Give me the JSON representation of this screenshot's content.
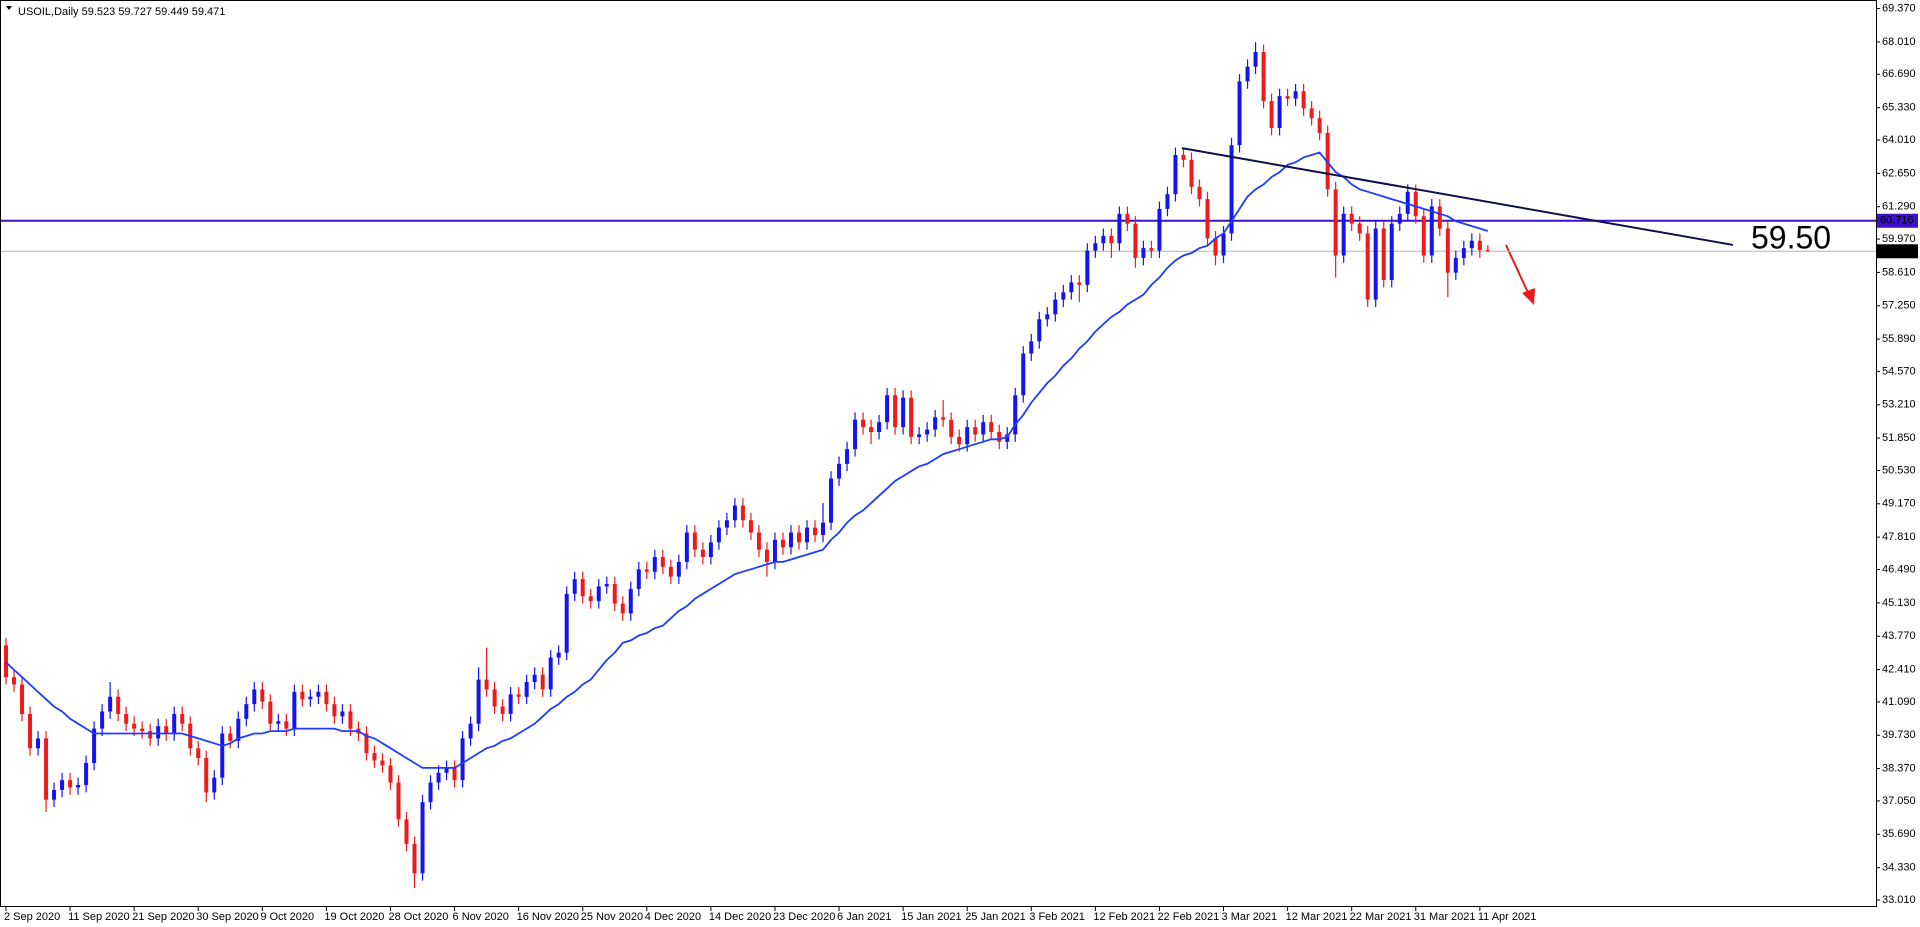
{
  "chart_data": {
    "type": "candlestick",
    "title": "USOIL,Daily",
    "categories": [
      "2 Sep 2020",
      null,
      null,
      null,
      null,
      null,
      null,
      null,
      "11 Sep 2020",
      null,
      null,
      null,
      null,
      null,
      null,
      null,
      "21 Sep 2020",
      null,
      null,
      null,
      null,
      null,
      null,
      null,
      "30 Sep 2020",
      null,
      null,
      null,
      null,
      null,
      null,
      null,
      "9 Oct 2020",
      null,
      null,
      null,
      null,
      null,
      null,
      null,
      "19 Oct 2020",
      null,
      null,
      null,
      null,
      null,
      null,
      null,
      "28 Oct 2020",
      null,
      null,
      null,
      null,
      null,
      null,
      null,
      "6 Nov 2020",
      null,
      null,
      null,
      null,
      null,
      null,
      null,
      "16 Nov 2020",
      null,
      null,
      null,
      null,
      null,
      null,
      null,
      "25 Nov 2020",
      null,
      null,
      null,
      null,
      null,
      null,
      null,
      "4 Dec 2020",
      null,
      null,
      null,
      null,
      null,
      null,
      null,
      "14 Dec 2020",
      null,
      null,
      null,
      null,
      null,
      null,
      null,
      "23 Dec 2020",
      null,
      null,
      null,
      null,
      null,
      null,
      null,
      "6 Jan 2021",
      null,
      null,
      null,
      null,
      null,
      null,
      null,
      "15 Jan 2021",
      null,
      null,
      null,
      null,
      null,
      null,
      null,
      "25 Jan 2021",
      null,
      null,
      null,
      null,
      null,
      null,
      null,
      "3 Feb 2021",
      null,
      null,
      null,
      null,
      null,
      null,
      null,
      "12 Feb 2021",
      null,
      null,
      null,
      null,
      null,
      null,
      null,
      "22 Feb 2021",
      null,
      null,
      null,
      null,
      null,
      null,
      null,
      "3 Mar 2021",
      null,
      null,
      null,
      null,
      null,
      null,
      null,
      "12 Mar 2021",
      null,
      null,
      null,
      null,
      null,
      null,
      null,
      "22 Mar 2021",
      null,
      null,
      null,
      null,
      null,
      null,
      null,
      "31 Mar 2021",
      null,
      null,
      null,
      null,
      null,
      null,
      null,
      "11 Apr 2021",
      null
    ],
    "open": [
      43.4,
      42.1,
      41.8,
      40.6,
      39.2,
      39.6,
      37.1,
      37.5,
      37.9,
      37.6,
      37.7,
      38.6,
      40.0,
      40.7,
      41.3,
      40.6,
      40.2,
      40.0,
      39.9,
      39.6,
      40.1,
      39.8,
      40.6,
      40.2,
      39.2,
      38.8,
      37.4,
      38.0,
      39.8,
      39.5,
      40.4,
      41.0,
      41.6,
      41.1,
      40.2,
      40.3,
      40.0,
      41.5,
      41.2,
      41.3,
      41.5,
      41.0,
      40.5,
      40.7,
      40.0,
      39.8,
      39.0,
      38.7,
      38.5,
      37.8,
      36.3,
      35.3,
      34.1,
      37.0,
      37.8,
      38.2,
      38.4,
      37.9,
      39.6,
      40.2,
      42.0,
      41.6,
      40.9,
      40.6,
      41.4,
      41.3,
      41.9,
      42.2,
      41.6,
      42.9,
      43.1,
      45.5,
      46.1,
      45.4,
      45.2,
      45.8,
      45.9,
      45.1,
      44.7,
      45.7,
      46.5,
      46.4,
      47.0,
      46.6,
      46.2,
      46.8,
      48.0,
      47.3,
      47.0,
      47.6,
      48.2,
      48.5,
      49.1,
      48.5,
      48.0,
      47.3,
      46.8,
      47.7,
      47.4,
      48.0,
      47.6,
      48.2,
      47.9,
      48.4,
      50.2,
      50.8,
      51.4,
      52.6,
      52.3,
      52.1,
      52.5,
      53.6,
      52.3,
      53.5,
      51.9,
      52.0,
      52.2,
      52.7,
      52.6,
      51.9,
      51.6,
      52.3,
      52.0,
      52.5,
      52.1,
      51.7,
      52.0,
      53.6,
      55.3,
      55.8,
      56.7,
      56.9,
      57.5,
      57.8,
      58.2,
      58.1,
      59.5,
      59.8,
      60.1,
      59.8,
      61.0,
      60.6,
      59.2,
      59.6,
      59.5,
      61.2,
      61.8,
      63.4,
      63.2,
      62.1,
      61.6,
      60.0,
      59.3,
      60.2,
      63.8,
      66.4,
      67.0,
      67.6,
      65.6,
      64.5,
      65.8,
      65.7,
      66.0,
      65.3,
      64.9,
      64.3,
      62.0,
      59.3,
      61.0,
      60.6,
      60.2,
      57.5,
      60.4,
      58.3,
      60.6,
      61.0,
      61.9,
      60.9,
      59.3,
      61.3,
      60.4,
      58.6,
      59.2,
      59.6,
      59.9,
      59.523
    ],
    "high": [
      43.7,
      42.4,
      42.1,
      40.9,
      39.9,
      39.9,
      37.8,
      38.2,
      38.2,
      38.0,
      38.9,
      40.3,
      41.0,
      41.9,
      41.6,
      40.9,
      40.5,
      40.3,
      40.2,
      40.4,
      40.4,
      40.9,
      40.9,
      40.5,
      39.5,
      39.1,
      38.3,
      40.1,
      40.1,
      40.7,
      41.3,
      41.9,
      41.9,
      41.4,
      40.6,
      40.6,
      41.8,
      41.8,
      41.6,
      41.8,
      41.8,
      41.3,
      41.0,
      41.0,
      40.3,
      40.1,
      39.3,
      39.0,
      38.8,
      38.1,
      36.6,
      35.6,
      37.3,
      38.1,
      38.5,
      38.7,
      38.7,
      39.9,
      40.5,
      42.5,
      43.3,
      41.9,
      41.2,
      41.7,
      41.7,
      42.2,
      42.5,
      42.5,
      43.2,
      43.4,
      45.8,
      46.4,
      46.4,
      45.7,
      46.1,
      46.2,
      46.2,
      45.4,
      46.0,
      46.8,
      46.8,
      47.3,
      47.3,
      46.9,
      47.1,
      48.3,
      48.3,
      47.6,
      47.9,
      48.5,
      48.8,
      49.4,
      49.4,
      48.8,
      48.3,
      47.6,
      48.0,
      48.0,
      48.3,
      48.3,
      48.5,
      48.5,
      49.2,
      50.5,
      51.1,
      51.7,
      52.9,
      52.9,
      52.6,
      52.8,
      53.9,
      53.9,
      53.8,
      53.8,
      52.3,
      52.5,
      53.0,
      53.4,
      52.9,
      52.2,
      52.6,
      52.6,
      52.8,
      52.8,
      52.4,
      52.3,
      53.9,
      55.6,
      56.1,
      57.0,
      57.2,
      57.8,
      58.1,
      58.5,
      58.5,
      59.8,
      60.1,
      60.4,
      60.4,
      61.3,
      61.3,
      60.9,
      59.9,
      59.9,
      61.5,
      62.1,
      63.7,
      63.7,
      63.5,
      62.4,
      61.9,
      60.3,
      60.5,
      64.1,
      66.7,
      67.3,
      68.0,
      67.9,
      65.9,
      66.1,
      66.1,
      66.3,
      66.3,
      65.6,
      65.2,
      64.6,
      62.3,
      61.3,
      61.3,
      60.9,
      60.5,
      60.7,
      60.7,
      60.9,
      61.3,
      62.2,
      62.2,
      61.2,
      61.6,
      61.6,
      60.7,
      59.5,
      59.9,
      60.2,
      60.2,
      59.727
    ],
    "low": [
      41.8,
      41.5,
      40.3,
      38.9,
      38.9,
      36.6,
      36.8,
      37.2,
      37.3,
      37.3,
      37.4,
      38.3,
      39.7,
      40.4,
      40.3,
      39.9,
      39.7,
      39.6,
      39.3,
      39.3,
      39.5,
      39.5,
      39.9,
      38.9,
      38.5,
      37.0,
      37.1,
      37.7,
      39.2,
      39.2,
      40.1,
      40.7,
      40.8,
      39.9,
      39.9,
      39.7,
      39.7,
      40.9,
      40.9,
      41.0,
      40.7,
      40.2,
      40.2,
      39.7,
      39.5,
      38.7,
      38.4,
      38.2,
      37.5,
      36.0,
      35.0,
      33.5,
      33.8,
      36.7,
      37.5,
      37.9,
      37.6,
      37.6,
      39.3,
      39.9,
      41.3,
      40.6,
      40.3,
      40.3,
      41.0,
      41.0,
      41.6,
      41.3,
      41.3,
      42.6,
      42.8,
      45.2,
      45.1,
      44.9,
      44.9,
      45.5,
      44.8,
      44.4,
      44.4,
      45.4,
      46.1,
      46.1,
      46.3,
      45.9,
      45.9,
      46.5,
      47.0,
      46.7,
      46.7,
      47.3,
      47.9,
      48.2,
      48.2,
      47.7,
      47.0,
      46.2,
      46.5,
      47.1,
      47.1,
      47.3,
      47.3,
      47.6,
      47.6,
      48.1,
      49.9,
      50.5,
      51.1,
      52.0,
      51.6,
      51.8,
      52.2,
      52.0,
      52.0,
      51.6,
      51.6,
      51.7,
      51.9,
      52.3,
      51.6,
      51.3,
      51.3,
      51.7,
      51.7,
      51.8,
      51.4,
      51.4,
      51.7,
      53.3,
      55.0,
      55.5,
      56.4,
      56.6,
      57.2,
      57.5,
      57.4,
      57.8,
      59.2,
      59.5,
      59.2,
      59.5,
      60.3,
      58.8,
      58.9,
      59.2,
      59.2,
      60.9,
      61.5,
      62.9,
      61.8,
      61.3,
      59.7,
      58.9,
      59.0,
      59.9,
      63.5,
      66.1,
      66.7,
      65.3,
      64.2,
      64.2,
      65.4,
      65.4,
      65.0,
      64.6,
      64.0,
      61.7,
      58.4,
      59.0,
      60.3,
      59.9,
      57.2,
      57.2,
      58.0,
      58.0,
      60.3,
      60.7,
      60.6,
      59.0,
      59.0,
      60.1,
      57.6,
      58.3,
      58.9,
      59.3,
      59.2,
      59.449
    ],
    "close": [
      42.1,
      41.8,
      40.6,
      39.2,
      39.6,
      37.1,
      37.5,
      37.9,
      37.6,
      37.7,
      38.6,
      40.0,
      40.7,
      41.3,
      40.6,
      40.2,
      40.0,
      39.9,
      39.6,
      40.1,
      39.8,
      40.6,
      40.2,
      39.2,
      38.8,
      37.4,
      38.0,
      39.8,
      39.5,
      40.4,
      41.0,
      41.6,
      41.1,
      40.2,
      40.3,
      40.0,
      41.5,
      41.2,
      41.3,
      41.5,
      41.0,
      40.5,
      40.7,
      40.0,
      39.8,
      39.0,
      38.7,
      38.5,
      37.8,
      36.3,
      35.3,
      34.1,
      37.0,
      37.8,
      38.2,
      38.4,
      37.9,
      39.6,
      40.2,
      42.0,
      41.6,
      40.9,
      40.6,
      41.4,
      41.3,
      41.9,
      42.2,
      41.6,
      42.9,
      43.1,
      45.5,
      46.1,
      45.4,
      45.2,
      45.8,
      45.9,
      45.1,
      44.7,
      45.7,
      46.5,
      46.4,
      47.0,
      46.6,
      46.2,
      46.8,
      48.0,
      47.3,
      47.0,
      47.6,
      48.2,
      48.5,
      49.1,
      48.5,
      48.0,
      47.3,
      46.8,
      47.7,
      47.4,
      48.0,
      47.6,
      48.2,
      47.9,
      48.4,
      50.2,
      50.8,
      51.4,
      52.6,
      52.3,
      52.1,
      52.5,
      53.6,
      52.3,
      53.5,
      51.9,
      52.0,
      52.2,
      52.7,
      52.6,
      51.9,
      51.6,
      52.3,
      52.0,
      52.5,
      52.1,
      51.7,
      52.0,
      53.6,
      55.3,
      55.8,
      56.7,
      56.9,
      57.5,
      57.8,
      58.2,
      58.1,
      59.5,
      59.8,
      60.1,
      59.8,
      61.0,
      60.6,
      59.2,
      59.6,
      59.5,
      61.2,
      61.8,
      63.4,
      63.2,
      62.1,
      61.6,
      60.0,
      59.3,
      60.2,
      63.8,
      66.4,
      67.0,
      67.6,
      65.6,
      64.5,
      65.8,
      65.7,
      66.0,
      65.3,
      64.9,
      64.3,
      62.0,
      59.3,
      61.0,
      60.6,
      60.2,
      57.5,
      60.4,
      58.3,
      60.6,
      61.0,
      61.9,
      60.9,
      59.3,
      61.3,
      60.4,
      58.6,
      59.2,
      59.6,
      59.9,
      59.52,
      59.471
    ],
    "up_color": "#1414f0",
    "down_color": "#f01a1a",
    "ma": {
      "color": "#1e3cff",
      "values": [
        42.7,
        42.4,
        42.1,
        41.8,
        41.5,
        41.2,
        40.9,
        40.7,
        40.4,
        40.2,
        40.0,
        39.8,
        39.8,
        39.8,
        39.8,
        39.8,
        39.8,
        39.8,
        39.8,
        39.8,
        39.8,
        39.8,
        39.8,
        39.7,
        39.6,
        39.5,
        39.4,
        39.3,
        39.4,
        39.6,
        39.7,
        39.8,
        39.8,
        39.9,
        39.9,
        39.9,
        40.0,
        40.0,
        40.0,
        40.0,
        40.0,
        40.0,
        39.9,
        39.9,
        39.9,
        39.7,
        39.6,
        39.4,
        39.2,
        39.0,
        38.8,
        38.6,
        38.4,
        38.4,
        38.4,
        38.4,
        38.4,
        38.6,
        38.8,
        39.0,
        39.2,
        39.3,
        39.5,
        39.6,
        39.8,
        40.0,
        40.2,
        40.5,
        40.8,
        41.0,
        41.3,
        41.5,
        41.8,
        42.0,
        42.4,
        42.8,
        43.1,
        43.5,
        43.6,
        43.8,
        43.9,
        44.1,
        44.2,
        44.5,
        44.8,
        45.0,
        45.3,
        45.5,
        45.7,
        45.9,
        46.1,
        46.3,
        46.4,
        46.5,
        46.6,
        46.7,
        46.8,
        46.8,
        46.9,
        47.0,
        47.1,
        47.2,
        47.3,
        47.7,
        48.0,
        48.4,
        48.7,
        48.9,
        49.2,
        49.5,
        49.8,
        50.1,
        50.3,
        50.5,
        50.7,
        50.8,
        51.0,
        51.2,
        51.3,
        51.4,
        51.5,
        51.6,
        51.7,
        51.8,
        51.8,
        51.9,
        52.4,
        52.8,
        53.3,
        53.7,
        54.1,
        54.4,
        54.8,
        55.1,
        55.5,
        55.8,
        56.2,
        56.5,
        56.8,
        57.0,
        57.3,
        57.5,
        57.7,
        58.1,
        58.4,
        58.8,
        59.1,
        59.3,
        59.4,
        59.6,
        59.7,
        60.0,
        60.2,
        60.7,
        61.2,
        61.7,
        62.0,
        62.2,
        62.5,
        62.7,
        63.0,
        63.1,
        63.3,
        63.4,
        63.5,
        63.1,
        62.7,
        62.5,
        62.2,
        62.0,
        61.9,
        61.8,
        61.7,
        61.6,
        61.5,
        61.4,
        61.3,
        61.2,
        61.1,
        61.0,
        60.9,
        60.7,
        60.6,
        60.5,
        60.4,
        60.3
      ]
    },
    "ylim": [
      33.01,
      69.37
    ],
    "yticks": [
      {
        "value": 69.37,
        "label": "69.370"
      },
      {
        "value": 68.01,
        "label": "68.010"
      },
      {
        "value": 66.69,
        "label": "66.690"
      },
      {
        "value": 65.33,
        "label": "65.330"
      },
      {
        "value": 64.01,
        "label": "64.010"
      },
      {
        "value": 62.65,
        "label": "62.650"
      },
      {
        "value": 61.29,
        "label": "61.290"
      },
      {
        "value": 59.97,
        "label": "59.970"
      },
      {
        "value": 58.61,
        "label": "58.610"
      },
      {
        "value": 57.25,
        "label": "57.250"
      },
      {
        "value": 55.89,
        "label": "55.890"
      },
      {
        "value": 54.57,
        "label": "54.570"
      },
      {
        "value": 53.21,
        "label": "53.210"
      },
      {
        "value": 51.85,
        "label": "51.850"
      },
      {
        "value": 50.53,
        "label": "50.530"
      },
      {
        "value": 49.17,
        "label": "49.170"
      },
      {
        "value": 47.81,
        "label": "47.810"
      },
      {
        "value": 46.49,
        "label": "46.490"
      },
      {
        "value": 45.13,
        "label": "45.130"
      },
      {
        "value": 43.77,
        "label": "43.770"
      },
      {
        "value": 42.41,
        "label": "42.410"
      },
      {
        "value": 41.09,
        "label": "41.090"
      },
      {
        "value": 39.73,
        "label": "39.730"
      },
      {
        "value": 38.37,
        "label": "38.370"
      },
      {
        "value": 37.05,
        "label": "37.050"
      },
      {
        "value": 35.69,
        "label": "35.690"
      },
      {
        "value": 34.33,
        "label": "34.330"
      },
      {
        "value": 33.01,
        "label": "33.010"
      }
    ],
    "hlines": [
      {
        "value": 60.716,
        "color": "#3a10c8"
      },
      {
        "value": 59.471,
        "color": "#b4b4b4"
      }
    ],
    "trendline": {
      "x": [
        146.8,
        215.6
      ],
      "y": [
        63.68,
        59.73
      ],
      "color": "#10104a"
    },
    "annotation": {
      "text": "59.50",
      "color": "#ff1a1a"
    }
  }
}
